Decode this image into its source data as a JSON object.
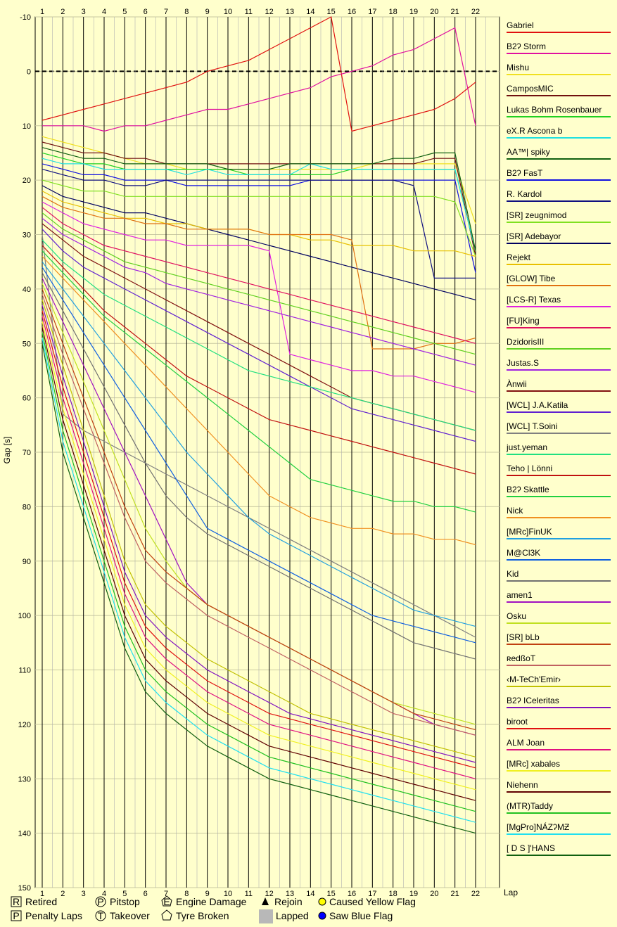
{
  "chart_data": {
    "type": "line",
    "xlabel": "Lap",
    "ylabel": "Gap [s]",
    "x": [
      1,
      2,
      3,
      4,
      5,
      6,
      7,
      8,
      9,
      10,
      11,
      12,
      13,
      14,
      15,
      16,
      17,
      18,
      19,
      20,
      21,
      22
    ],
    "ylim": [
      -10,
      150
    ],
    "yticks": [
      -10,
      0,
      10,
      20,
      30,
      40,
      50,
      60,
      70,
      80,
      90,
      100,
      110,
      120,
      130,
      140,
      150
    ],
    "grid": true,
    "legend_position": "right",
    "series": [
      {
        "name": "Gabriel",
        "color": "#e01010",
        "values": [
          9,
          8,
          7,
          6,
          5,
          4,
          3,
          2,
          0,
          -1,
          -2,
          -4,
          -6,
          -8,
          -10,
          11,
          10,
          9,
          8,
          7,
          5,
          2
        ]
      },
      {
        "name": "B2ʔ Storm",
        "color": "#e010a0",
        "values": [
          10,
          10,
          10,
          11,
          10,
          10,
          9,
          8,
          7,
          7,
          6,
          5,
          4,
          3,
          1,
          0,
          -1,
          -3,
          -4,
          -6,
          -8,
          10
        ]
      },
      {
        "name": "Mishu",
        "color": "#f0e020",
        "values": [
          12,
          13,
          14,
          15,
          16,
          17,
          17,
          18,
          18,
          18,
          18,
          18,
          18,
          18,
          18,
          18,
          17,
          17,
          17,
          17,
          17,
          28
        ]
      },
      {
        "name": "CamposMIC",
        "color": "#701010",
        "values": [
          13,
          14,
          15,
          15,
          16,
          16,
          17,
          17,
          17,
          17,
          17,
          17,
          17,
          17,
          17,
          17,
          17,
          17,
          17,
          16,
          16,
          34
        ]
      },
      {
        "name": "Lukas Bohm Rosenbauer",
        "color": "#20d020",
        "values": [
          15,
          16,
          17,
          17,
          18,
          18,
          18,
          18,
          18,
          18,
          19,
          19,
          19,
          19,
          19,
          18,
          18,
          18,
          18,
          18,
          18,
          33
        ]
      },
      {
        "name": "eX.R Ascona b",
        "color": "#20e0e0",
        "values": [
          16,
          17,
          17,
          18,
          18,
          18,
          18,
          19,
          18,
          19,
          19,
          19,
          19,
          17,
          18,
          18,
          18,
          18,
          18,
          18,
          18,
          33
        ]
      },
      {
        "name": "AA™| spiky",
        "color": "#106010",
        "values": [
          14,
          15,
          16,
          16,
          17,
          17,
          17,
          17,
          17,
          18,
          18,
          18,
          17,
          17,
          17,
          17,
          17,
          16,
          16,
          15,
          15,
          33
        ]
      },
      {
        "name": "B2ʔ FasT",
        "color": "#1010e0",
        "values": [
          17,
          18,
          19,
          19,
          20,
          20,
          20,
          21,
          21,
          21,
          21,
          21,
          21,
          20,
          20,
          20,
          20,
          20,
          20,
          20,
          20,
          37
        ]
      },
      {
        "name": "R. Kardol",
        "color": "#101080",
        "values": [
          18,
          19,
          20,
          20,
          21,
          21,
          20,
          20,
          20,
          20,
          20,
          20,
          20,
          20,
          20,
          20,
          20,
          20,
          21,
          38,
          38,
          38
        ]
      },
      {
        "name": "[SR] zeugnimod",
        "color": "#80e020",
        "values": [
          20,
          21,
          22,
          22,
          23,
          23,
          23,
          23,
          23,
          23,
          23,
          23,
          23,
          23,
          23,
          23,
          23,
          23,
          23,
          23,
          24,
          34
        ]
      },
      {
        "name": "[SR] Adebayor",
        "color": "#000060",
        "values": [
          21,
          23,
          24,
          25,
          26,
          26,
          27,
          28,
          29,
          30,
          31,
          32,
          33,
          34,
          35,
          36,
          37,
          38,
          39,
          40,
          41,
          42
        ]
      },
      {
        "name": "Rejekt",
        "color": "#e8c000",
        "values": [
          22,
          24,
          25,
          26,
          27,
          27,
          28,
          28,
          29,
          29,
          29,
          30,
          30,
          31,
          31,
          32,
          32,
          32,
          33,
          33,
          33,
          34
        ]
      },
      {
        "name": "[GLOW] Tibe",
        "color": "#e07010",
        "values": [
          23,
          25,
          26,
          27,
          27,
          28,
          28,
          29,
          29,
          29,
          29,
          30,
          30,
          30,
          30,
          31,
          51,
          51,
          51,
          50,
          50,
          49
        ]
      },
      {
        "name": "[LCS-R] Texas",
        "color": "#e020e0",
        "values": [
          24,
          26,
          28,
          29,
          30,
          31,
          31,
          32,
          32,
          32,
          32,
          33,
          52,
          53,
          54,
          55,
          55,
          56,
          56,
          57,
          58,
          59
        ]
      },
      {
        "name": "[FU]King",
        "color": "#e01060",
        "values": [
          25,
          28,
          30,
          32,
          33,
          34,
          35,
          36,
          37,
          38,
          39,
          40,
          41,
          42,
          43,
          44,
          45,
          46,
          47,
          48,
          49,
          50
        ]
      },
      {
        "name": "DzidorisIII",
        "color": "#60d020",
        "values": [
          26,
          29,
          31,
          33,
          35,
          36,
          37,
          38,
          39,
          40,
          41,
          42,
          43,
          44,
          45,
          46,
          47,
          48,
          49,
          50,
          51,
          52
        ]
      },
      {
        "name": "Justas.S",
        "color": "#a020e0",
        "values": [
          27,
          30,
          32,
          34,
          36,
          37,
          39,
          40,
          41,
          42,
          43,
          44,
          45,
          46,
          47,
          48,
          49,
          50,
          51,
          52,
          53,
          54
        ]
      },
      {
        "name": "Ànwii",
        "color": "#801010",
        "values": [
          28,
          31,
          34,
          36,
          38,
          40,
          42,
          44,
          46,
          48,
          50,
          52,
          54,
          56,
          58,
          60,
          61,
          62,
          63,
          64,
          65,
          66
        ]
      },
      {
        "name": "[WCL] J.A.Katila",
        "color": "#6020d0",
        "values": [
          29,
          33,
          36,
          38,
          40,
          42,
          44,
          46,
          48,
          50,
          52,
          54,
          56,
          58,
          60,
          62,
          63,
          64,
          65,
          66,
          67,
          68
        ]
      },
      {
        "name": "[WCL] T.Soini",
        "color": "#808080",
        "values": [
          30,
          63,
          66,
          68,
          70,
          72,
          74,
          76,
          78,
          80,
          82,
          84,
          86,
          88,
          90,
          92,
          94,
          96,
          98,
          100,
          102,
          104
        ]
      },
      {
        "name": "just.yeman",
        "color": "#20e080",
        "values": [
          31,
          35,
          38,
          41,
          43,
          45,
          47,
          49,
          51,
          53,
          55,
          56,
          57,
          58,
          59,
          60,
          61,
          62,
          63,
          64,
          65,
          66
        ]
      },
      {
        "name": "Teho | Lönni",
        "color": "#c01010",
        "values": [
          32,
          36,
          40,
          44,
          47,
          50,
          53,
          56,
          58,
          60,
          62,
          64,
          65,
          66,
          67,
          68,
          69,
          70,
          71,
          72,
          73,
          74
        ]
      },
      {
        "name": "B2ʔ Skattle",
        "color": "#20d040",
        "values": [
          33,
          37,
          41,
          45,
          48,
          51,
          54,
          57,
          60,
          63,
          66,
          69,
          72,
          75,
          76,
          77,
          78,
          79,
          79,
          80,
          80,
          81
        ]
      },
      {
        "name": "Nick",
        "color": "#f09020",
        "values": [
          34,
          38,
          42,
          46,
          50,
          54,
          58,
          62,
          66,
          70,
          74,
          78,
          80,
          82,
          83,
          84,
          84,
          85,
          85,
          86,
          86,
          87
        ]
      },
      {
        "name": "[MRc]FinUK",
        "color": "#20a0e0",
        "values": [
          35,
          40,
          45,
          50,
          55,
          60,
          65,
          70,
          74,
          78,
          82,
          85,
          87,
          89,
          91,
          93,
          95,
          97,
          99,
          100,
          101,
          102
        ]
      },
      {
        "name": "M@Cl3K",
        "color": "#1060e0",
        "values": [
          36,
          42,
          48,
          54,
          60,
          66,
          72,
          78,
          84,
          86,
          88,
          90,
          92,
          94,
          96,
          98,
          100,
          101,
          102,
          103,
          104,
          105
        ]
      },
      {
        "name": "Kid",
        "color": "#707070",
        "values": [
          37,
          44,
          51,
          58,
          65,
          72,
          78,
          82,
          85,
          87,
          89,
          91,
          93,
          95,
          97,
          99,
          101,
          103,
          105,
          106,
          107,
          108
        ]
      },
      {
        "name": "amen1",
        "color": "#a010c0",
        "values": [
          38,
          46,
          54,
          62,
          70,
          78,
          86,
          94,
          98,
          100,
          102,
          104,
          106,
          108,
          110,
          112,
          114,
          116,
          118,
          120,
          121,
          122
        ]
      },
      {
        "name": "Osku",
        "color": "#c0e020",
        "values": [
          39,
          48,
          57,
          66,
          75,
          84,
          90,
          95,
          98,
          100,
          102,
          104,
          106,
          108,
          110,
          112,
          114,
          116,
          117,
          118,
          119,
          120
        ]
      },
      {
        "name": "[SR] bLb",
        "color": "#c04010",
        "values": [
          40,
          50,
          60,
          70,
          80,
          88,
          92,
          95,
          98,
          100,
          102,
          104,
          106,
          108,
          110,
          112,
          114,
          116,
          118,
          119,
          120,
          121
        ]
      },
      {
        "name": "ʀedßoT",
        "color": "#c06060",
        "values": [
          41,
          52,
          62,
          72,
          82,
          90,
          94,
          97,
          100,
          102,
          104,
          106,
          108,
          110,
          112,
          114,
          116,
          118,
          119,
          120,
          121,
          122
        ]
      },
      {
        "name": "‹M-TeCh'Emir›",
        "color": "#c0c000",
        "values": [
          42,
          54,
          66,
          78,
          90,
          98,
          102,
          105,
          108,
          110,
          112,
          114,
          116,
          118,
          119,
          120,
          121,
          122,
          123,
          124,
          125,
          126
        ]
      },
      {
        "name": "B2ʔ ICeleritas",
        "color": "#8010c0",
        "values": [
          43,
          56,
          68,
          80,
          92,
          100,
          104,
          107,
          110,
          112,
          114,
          116,
          118,
          119,
          120,
          121,
          122,
          123,
          124,
          125,
          126,
          127
        ]
      },
      {
        "name": "biroot",
        "color": "#e01010",
        "values": [
          44,
          58,
          70,
          82,
          94,
          102,
          106,
          109,
          112,
          114,
          116,
          118,
          119,
          120,
          121,
          122,
          123,
          124,
          125,
          126,
          127,
          128
        ]
      },
      {
        "name": "ALM Joan",
        "color": "#e01080",
        "values": [
          45,
          60,
          72,
          84,
          96,
          104,
          108,
          111,
          114,
          116,
          118,
          120,
          121,
          122,
          123,
          124,
          125,
          126,
          127,
          128,
          129,
          130
        ]
      },
      {
        "name": "[MRc] xabales",
        "color": "#f0f020",
        "values": [
          46,
          62,
          74,
          86,
          98,
          106,
          110,
          113,
          116,
          118,
          120,
          122,
          123,
          124,
          125,
          126,
          127,
          128,
          129,
          130,
          131,
          132
        ]
      },
      {
        "name": "Niehenn",
        "color": "#600000",
        "values": [
          47,
          64,
          76,
          88,
          100,
          108,
          112,
          115,
          118,
          120,
          122,
          124,
          125,
          126,
          127,
          128,
          129,
          130,
          131,
          132,
          133,
          134
        ]
      },
      {
        "name": "(MTR)Taddy",
        "color": "#20c020",
        "values": [
          48,
          66,
          78,
          90,
          102,
          110,
          114,
          117,
          120,
          122,
          124,
          126,
          127,
          128,
          129,
          130,
          131,
          132,
          133,
          134,
          135,
          136
        ]
      },
      {
        "name": "[MgPro]NÁZʔMƵ",
        "color": "#20e0f0",
        "values": [
          49,
          68,
          80,
          92,
          104,
          112,
          116,
          119,
          122,
          124,
          126,
          128,
          129,
          130,
          131,
          132,
          133,
          134,
          135,
          136,
          137,
          138
        ]
      },
      {
        "name": "[ D S ]'HANS",
        "color": "#106010",
        "values": [
          50,
          70,
          82,
          94,
          106,
          114,
          118,
          121,
          124,
          126,
          128,
          130,
          131,
          132,
          133,
          134,
          135,
          136,
          137,
          138,
          139,
          140
        ]
      }
    ],
    "key": [
      {
        "symbol": "R",
        "label": "Retired"
      },
      {
        "symbol": "P",
        "label": "Penalty Laps"
      },
      {
        "symbol": "P",
        "label": "Pitstop"
      },
      {
        "symbol": "T",
        "label": "Takeover"
      },
      {
        "symbol": "E",
        "label": "Engine Damage"
      },
      {
        "symbol": "tyre",
        "label": "Tyre Broken"
      },
      {
        "symbol": "▲",
        "label": "Rejoin"
      },
      {
        "symbol": "lapped",
        "label": "Lapped"
      },
      {
        "symbol": "yellow",
        "label": "Caused Yellow Flag"
      },
      {
        "symbol": "blue",
        "label": "Saw Blue Flag"
      }
    ]
  }
}
